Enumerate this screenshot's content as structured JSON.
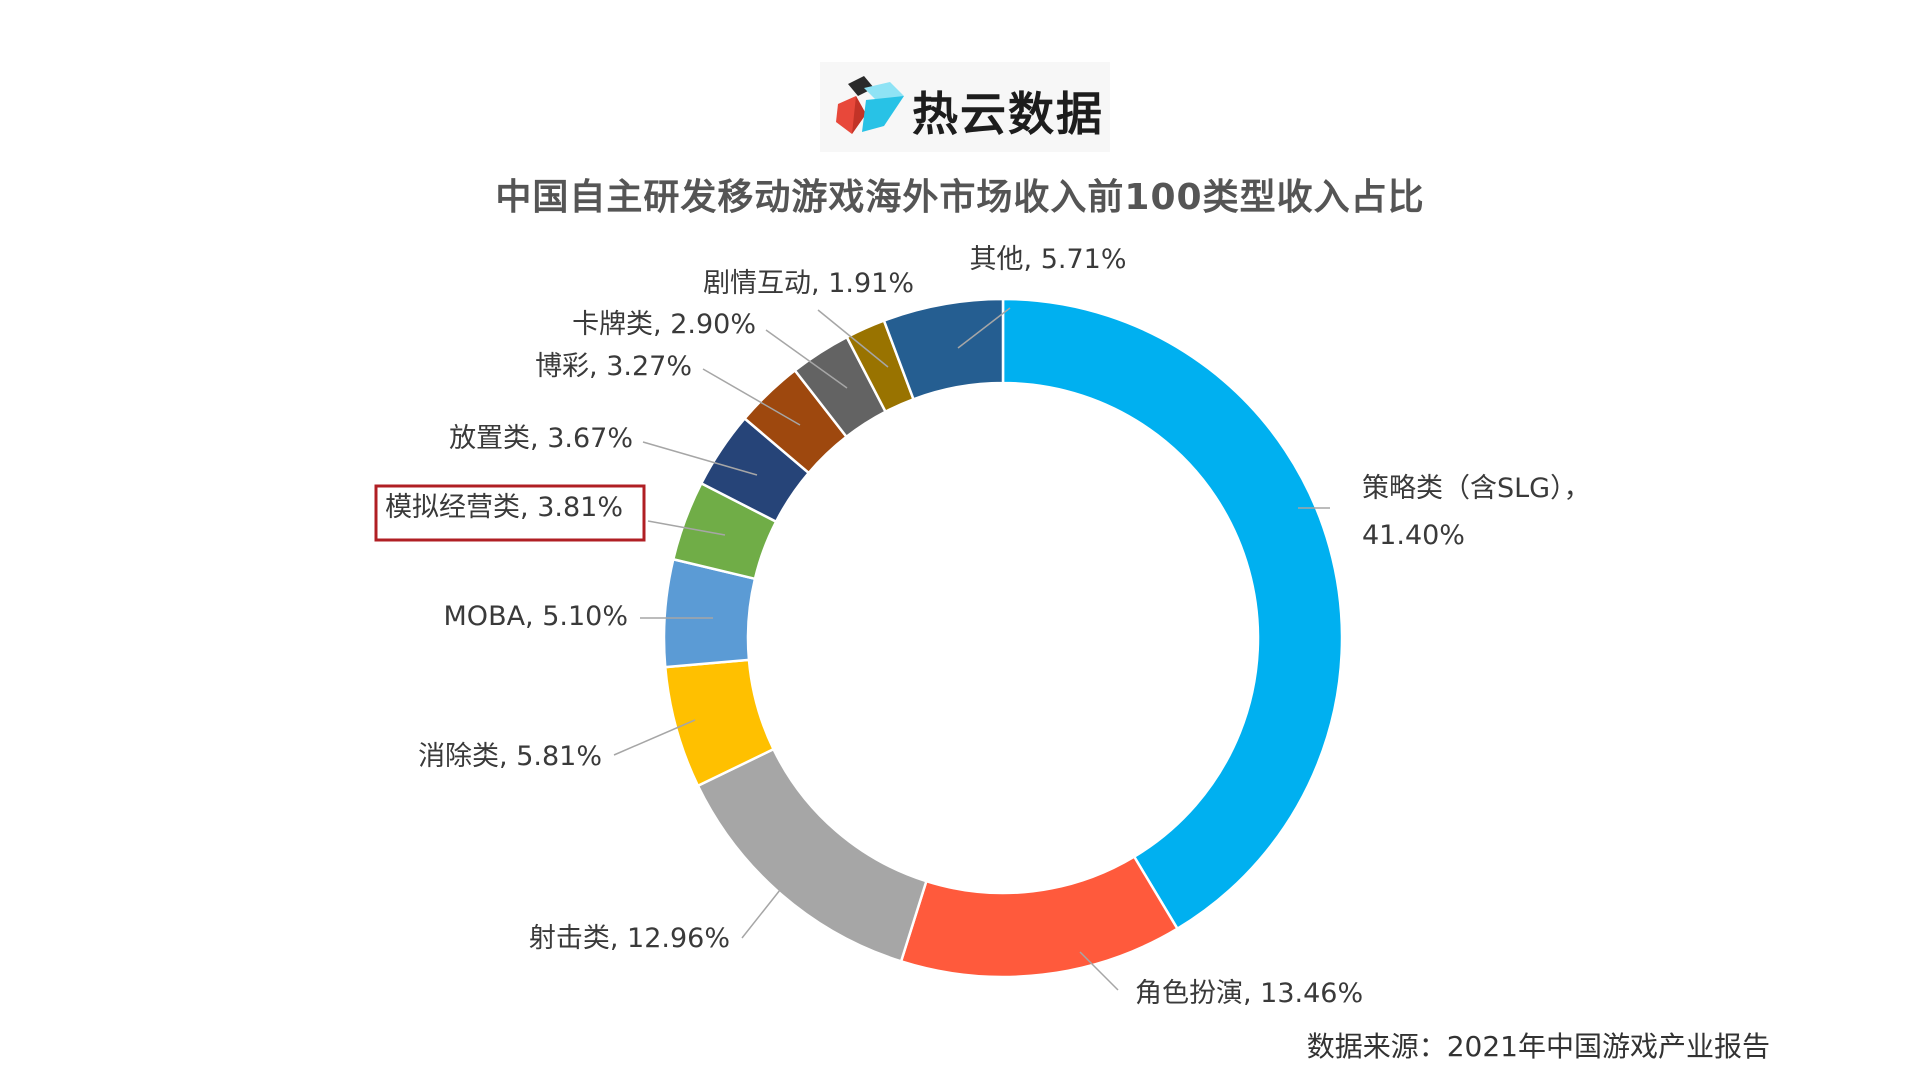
{
  "logo": {
    "text": "热云数据"
  },
  "colors": {
    "title": "#555555",
    "highlight_box": "#b01f24",
    "leader_line": "#a6a6a6"
  },
  "chart_data": {
    "type": "pie",
    "variant": "donut",
    "title": "中国自主研发移动游戏海外市场收入前100类型收入占比",
    "unit": "%",
    "start_angle_deg": 0,
    "direction": "clockwise",
    "series": [
      {
        "name": "策略类（含SLG）",
        "value": 41.4,
        "color": "#00b0f0",
        "label_lines": [
          "策略类（含SLG），",
          "41.40%"
        ]
      },
      {
        "name": "角色扮演",
        "value": 13.46,
        "color": "#ff5a3c",
        "label_lines": [
          "角色扮演, 13.46%"
        ]
      },
      {
        "name": "射击类",
        "value": 12.96,
        "color": "#a6a6a6",
        "label_lines": [
          "射击类, 12.96%"
        ]
      },
      {
        "name": "消除类",
        "value": 5.81,
        "color": "#ffc000",
        "label_lines": [
          "消除类, 5.81%"
        ]
      },
      {
        "name": "MOBA",
        "value": 5.1,
        "color": "#5b9bd5",
        "label_lines": [
          "MOBA, 5.10%"
        ]
      },
      {
        "name": "模拟经营类",
        "value": 3.81,
        "color": "#70ad47",
        "label_lines": [
          "模拟经营类, 3.81%"
        ],
        "highlighted": true
      },
      {
        "name": "放置类",
        "value": 3.67,
        "color": "#264478",
        "label_lines": [
          "放置类, 3.67%"
        ]
      },
      {
        "name": "博彩",
        "value": 3.27,
        "color": "#9e480e",
        "label_lines": [
          "博彩, 3.27%"
        ]
      },
      {
        "name": "卡牌类",
        "value": 2.9,
        "color": "#636363",
        "label_lines": [
          "卡牌类, 2.90%"
        ]
      },
      {
        "name": "剧情互动",
        "value": 1.91,
        "color": "#997300",
        "label_lines": [
          "剧情互动, 1.91%"
        ]
      },
      {
        "name": "其他",
        "value": 5.71,
        "color": "#255e91",
        "label_lines": [
          "其他, 5.71%"
        ]
      }
    ]
  },
  "source": "数据来源：2021年中国游戏产业报告"
}
